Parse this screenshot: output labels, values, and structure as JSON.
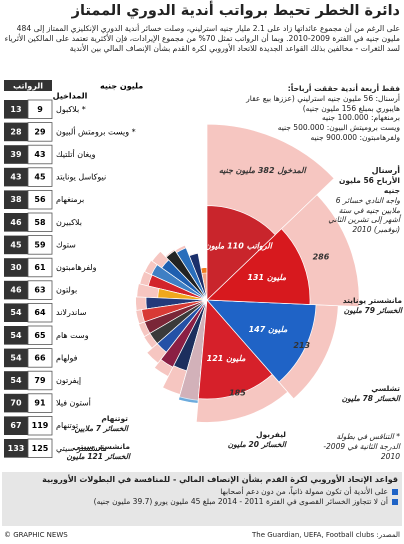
{
  "header": {
    "title": "دائرة الخطر تحيط برواتب أندية الدوري الممتاز",
    "intro": "على الرغم من أن مجموع عائداتها زاد على 2.1 مليار جنيه استرليني، وصلت خسائر أندية الدوري الإنكليزي الممتاز إلى 484 مليون جنيه في الفترة 2009-2010. وبما أن الرواتب تمثل 70% من مجموع الإيرادات، فإن الأكثرية تعتمد على المالكين الأثرياء لسد الثغرات - مخالفين بذلك القواعد الجديدة للاتحاد الأوروبي لكرة القدم بشأن الإنصاف المالي بين الأندية"
  },
  "profits": {
    "title": "فقط أربعة أندية حققت أرباحاً:",
    "items": [
      "أرسنال: 56 مليون جنيه استرليني (عززها بيع عقار هايبوري بمبلغ 156 مليون جنيه)",
      "برمنغهام: 100.000 جنيه",
      "ويست بروميتش البيون: 500.000 جنيه",
      "ولفرهامبتون: 900.000 جنيه"
    ]
  },
  "chart_data": {
    "type": "radial-bar",
    "radius_scale": "sqrt",
    "unit": "مليون جنيه",
    "categories": [
      "بلاكبول *",
      "ويست برومتش ألبيون *",
      "ويغان أتلتيك",
      "نيوكاسل يونايتد",
      "برمنغهام",
      "بلاكبيرن",
      "ستوك",
      "ولفرهامبتون",
      "بولتون",
      "ساندرلاند",
      "وست هام",
      "فولهام",
      "إيفرتون",
      "أستون فيلا",
      "توتنهام",
      "مانشستر سيتي",
      "ليفربول",
      "تشلسي",
      "مانشستر يونايتد",
      "أرسنال"
    ],
    "series": [
      {
        "name": "المداخيل",
        "color": "#f4b4ad",
        "values": [
          9,
          29,
          43,
          45,
          56,
          58,
          59,
          61,
          63,
          64,
          65,
          66,
          79,
          91,
          119,
          125,
          185,
          213,
          286,
          382
        ],
        "value_labels": [
          null,
          null,
          null,
          null,
          null,
          null,
          null,
          null,
          null,
          null,
          null,
          null,
          null,
          null,
          null,
          null,
          null,
          null,
          null,
          "المدخول 382 مليون جنيه"
        ]
      },
      {
        "name": "الرواتب",
        "color": "#c8102e",
        "colors": [
          "#f07c1e",
          "#1b2f6b",
          "#2a6ebb",
          "#222222",
          "#1f5fb0",
          "#3f7fc4",
          "#d2232a",
          "#f0a81c",
          "#233a7a",
          "#d83a35",
          "#7a2637",
          "#3a3a3a",
          "#2451a6",
          "#8b1f44",
          "#1c2f5e",
          "#6cabdd",
          "#d6202a",
          "#1f63c6",
          "#d7191e",
          "#c9252c"
        ],
        "values": [
          13,
          28,
          39,
          43,
          38,
          46,
          45,
          30,
          46,
          54,
          54,
          54,
          54,
          70,
          67,
          133,
          121,
          147,
          131,
          110
        ],
        "value_labels": [
          null,
          null,
          null,
          null,
          null,
          null,
          null,
          null,
          null,
          null,
          null,
          null,
          null,
          null,
          null,
          null,
          "121 مليون",
          "147 مليون",
          "131 مليون",
          "الرواتب 110 مليون جنيه"
        ]
      }
    ]
  },
  "annotations": [
    "الخسائر 7 ملايين",
    "الخسائر 121 مليون",
    "الخسائر 20 مليون",
    "الخسائر 78 مليون",
    "الخسائر 79 مليون",
    "الأرباح 56 مليون جنيه",
    "واجه النادي خسائر 6 ملايين جنيه في ستة أشهر إلى تشرين الثاني (نوفمبر) 2010"
  ],
  "footnote": "* التناقس في بطولة الدرجة الثانية في 2009-2010",
  "rules": {
    "title": "قواعد الإتحاد الأوروبي لكرة القدم بشأن الإنصاف المالي - للمنافسة في البطولات الأوروبية",
    "items": [
      "على الأندية أن تكون ممولة ذاتياً، من دون دعم أصحابها",
      "أن لا تتجاوز الخسائر القصوى في الفترة 2011 - 2014 مبلغ 45 مليون يورو (39.7 مليون جنيه)"
    ]
  },
  "footer": {
    "credit": "© GRAPHIC NEWS",
    "source": "المصدر: The Guardian, UEFA, Football clubs"
  }
}
